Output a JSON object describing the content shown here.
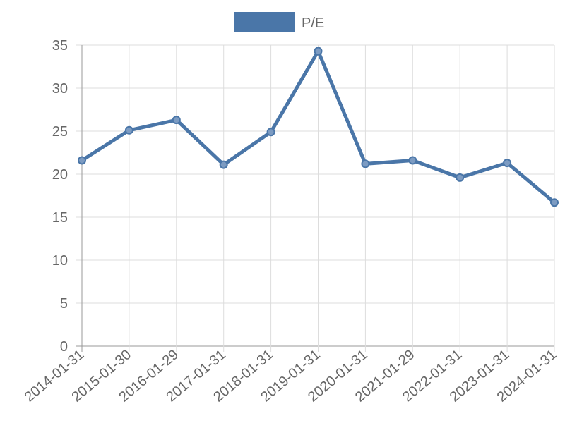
{
  "chart_data": {
    "type": "line",
    "categories": [
      "2014-01-31",
      "2015-01-30",
      "2016-01-29",
      "2017-01-31",
      "2018-01-31",
      "2019-01-31",
      "2020-01-31",
      "2021-01-29",
      "2022-01-31",
      "2023-01-31",
      "2024-01-31"
    ],
    "series": [
      {
        "name": "P/E",
        "color": "#4a76a8",
        "values": [
          21.6,
          25.1,
          26.3,
          21.1,
          24.9,
          34.3,
          21.2,
          21.6,
          19.6,
          21.3,
          16.7
        ]
      }
    ],
    "ylim": [
      0,
      35
    ],
    "yticks": [
      0,
      5,
      10,
      15,
      20,
      25,
      30,
      35
    ],
    "grid": true,
    "legend": "top"
  }
}
